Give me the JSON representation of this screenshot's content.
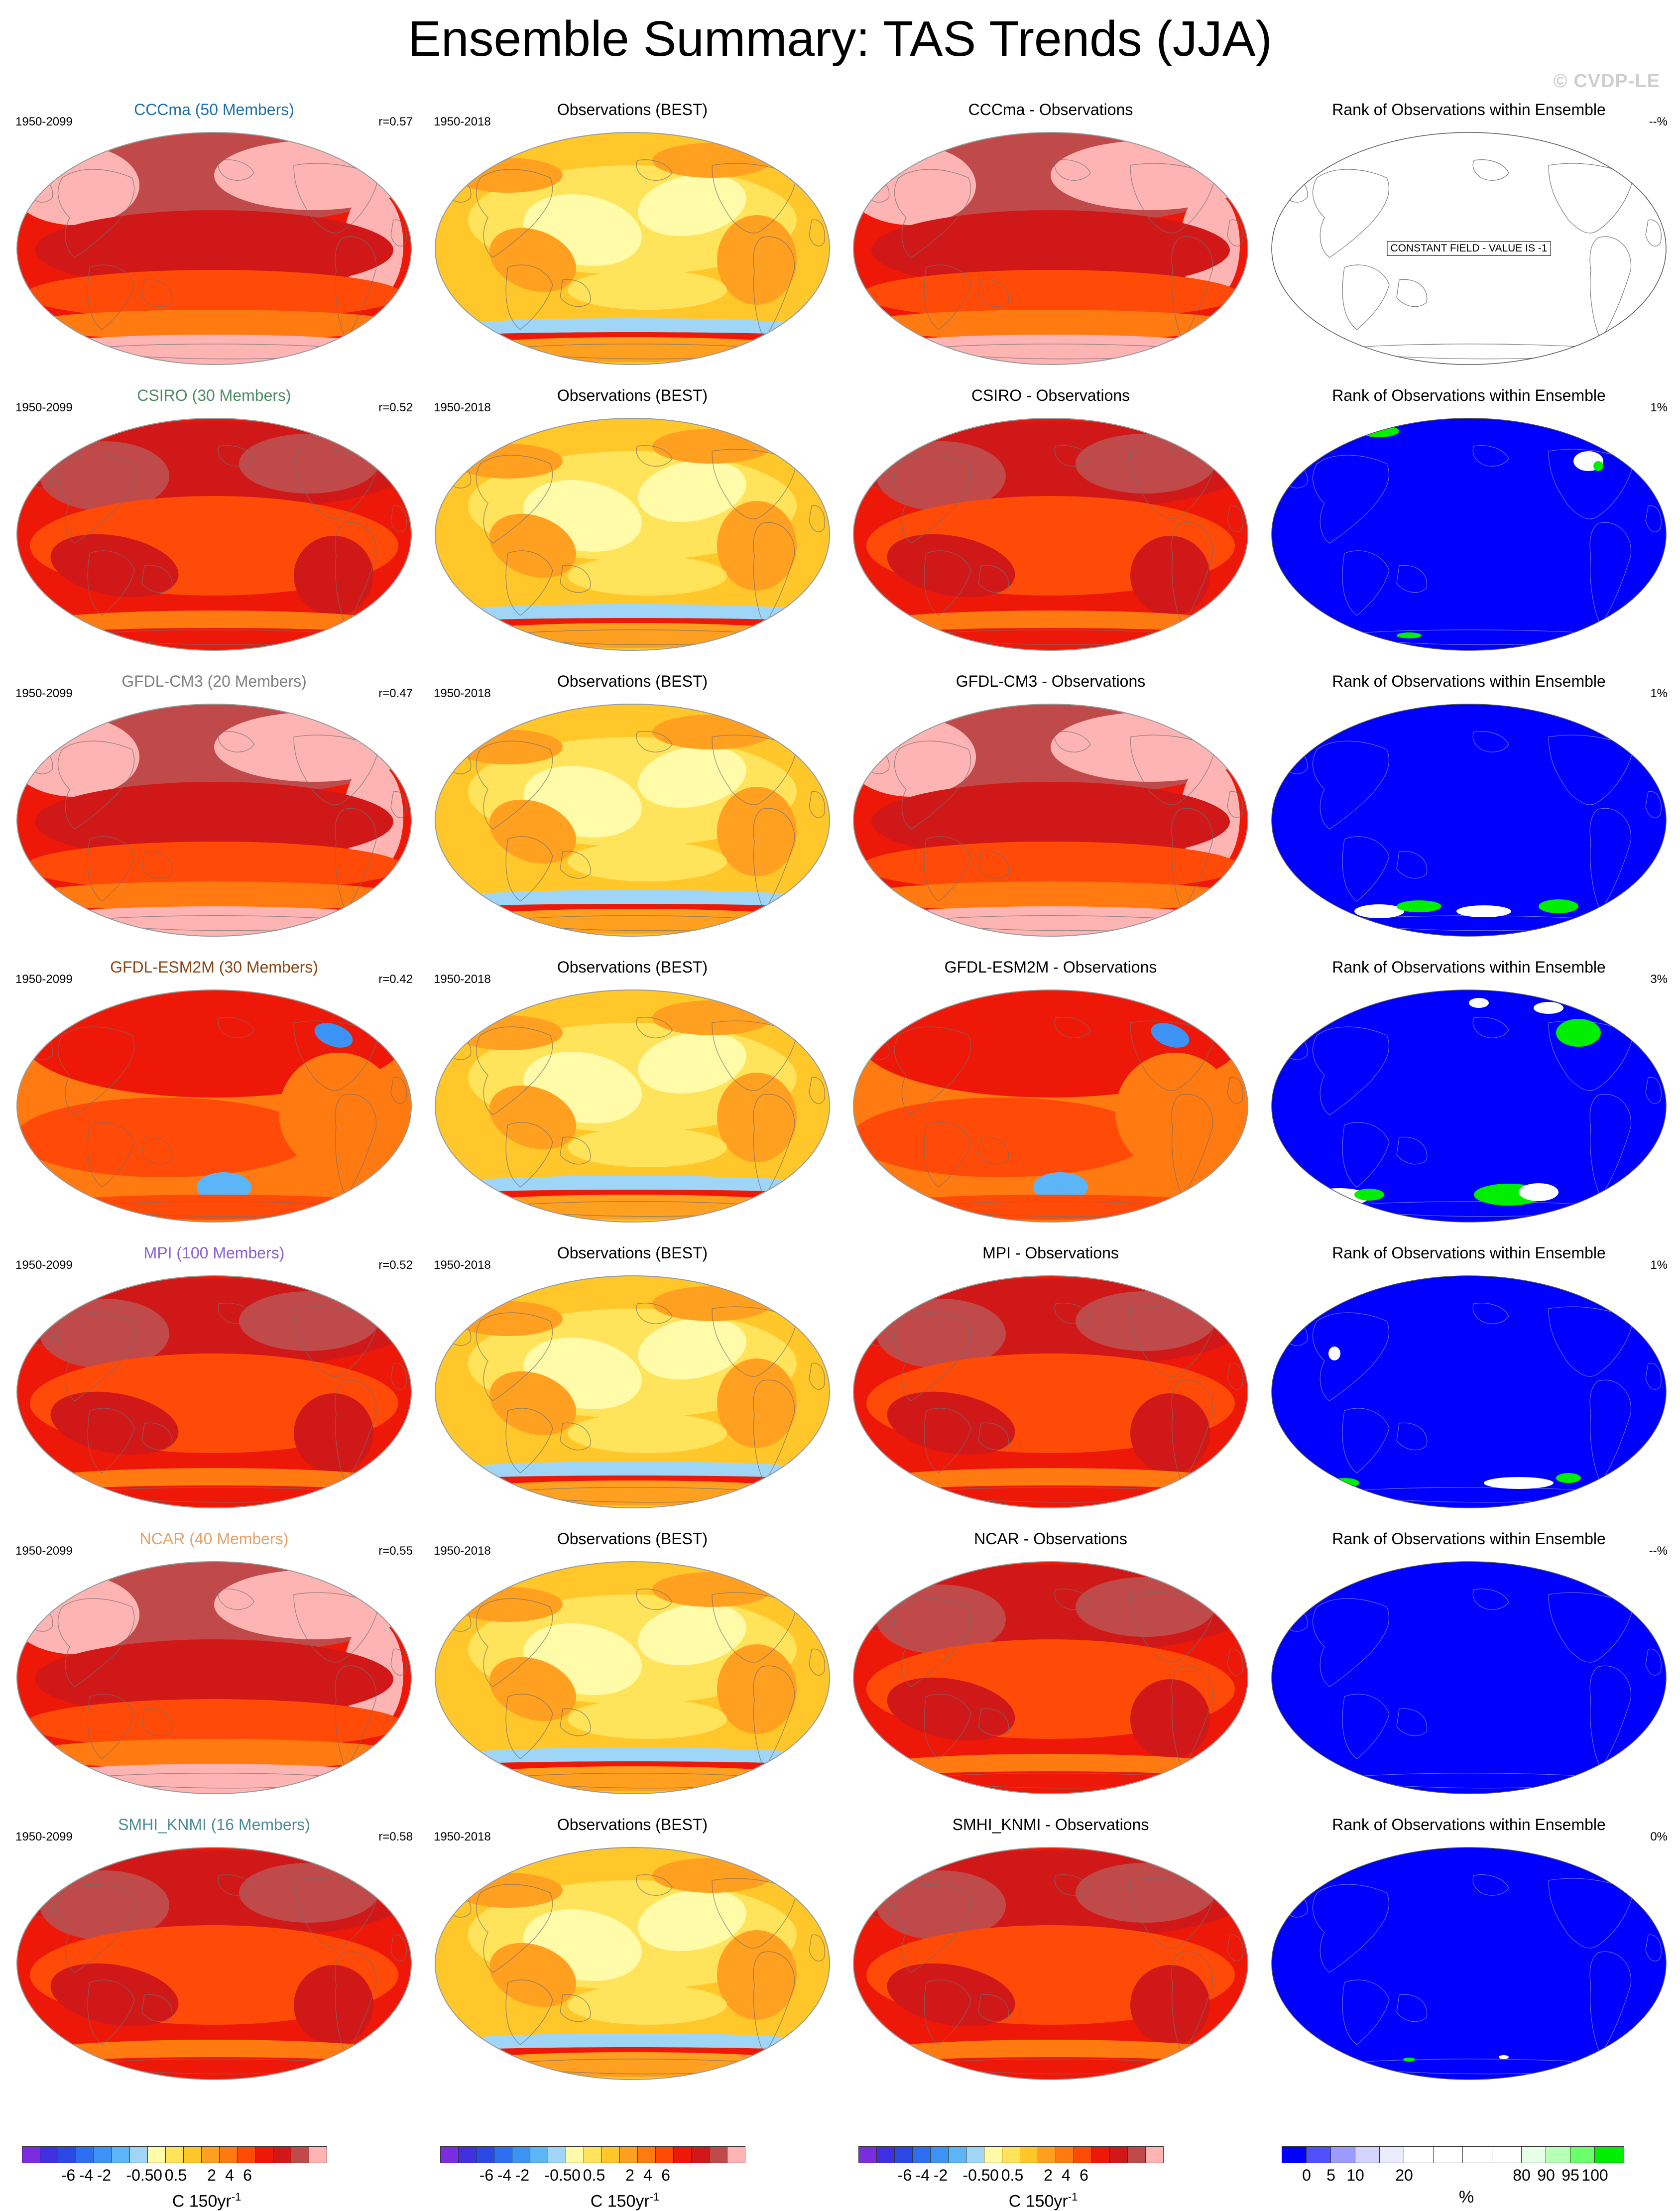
{
  "title": "Ensemble Summary: TAS Trends (JJA)",
  "credit": "© CVDP-LE",
  "colors": {
    "ocean_outline": "#9a9a9a",
    "coast": "#6f6f6f",
    "rank_blue": "#0000ff",
    "trend_ramp": [
      "#7b2be0",
      "#3f2fe0",
      "#2b48e6",
      "#2e6ef0",
      "#3c93f5",
      "#5bb5f7",
      "#9fd6f7",
      "#fffba8",
      "#ffe35a",
      "#ffc72a",
      "#ffa020",
      "#ff7a10",
      "#ff4a08",
      "#ee1808",
      "#d01818",
      "#c04a4a",
      "#ffb4b4"
    ],
    "rank_ramp": [
      "#0000ff",
      "#5050ff",
      "#9a9aff",
      "#d4d4ff",
      "#ebebff",
      "#ffffff",
      "#ffffff",
      "#ffffff",
      "#ffffff",
      "#e6ffe6",
      "#b8ffb8",
      "#6cff6c",
      "#00ee00"
    ]
  },
  "rows": [
    {
      "model_title": "CCCma (50 Members)",
      "model_color": "#1f6fa8",
      "model_period": "1950-2099",
      "r_label": "r=0.57",
      "obs_title": "Observations (BEST)",
      "obs_period": "1950-2018",
      "diff_title": "CCCma - Observations",
      "rank_title": "Rank of Observations within Ensemble",
      "rank_pct": "--%",
      "constant_label": "CONSTANT FIELD - VALUE IS -1",
      "model_style": "pink",
      "diff_style": "pink",
      "rank_style": "blank"
    },
    {
      "model_title": "CSIRO (30 Members)",
      "model_color": "#4e8a64",
      "model_period": "1950-2099",
      "r_label": "r=0.52",
      "obs_title": "Observations (BEST)",
      "obs_period": "1950-2018",
      "diff_title": "CSIRO - Observations",
      "rank_title": "Rank of Observations within Ensemble",
      "rank_pct": "1%",
      "model_style": "red",
      "diff_style": "red",
      "rank_style": "blue"
    },
    {
      "model_title": "GFDL-CM3 (20 Members)",
      "model_color": "#808080",
      "model_period": "1950-2099",
      "r_label": "r=0.47",
      "obs_title": "Observations (BEST)",
      "obs_period": "1950-2018",
      "diff_title": "GFDL-CM3 - Observations",
      "rank_title": "Rank of Observations within Ensemble",
      "rank_pct": "1%",
      "model_style": "pink",
      "diff_style": "pink",
      "rank_style": "blue"
    },
    {
      "model_title": "GFDL-ESM2M (30 Members)",
      "model_color": "#8b4513",
      "model_period": "1950-2099",
      "r_label": "r=0.42",
      "obs_title": "Observations (BEST)",
      "obs_period": "1950-2018",
      "diff_title": "GFDL-ESM2M - Observations",
      "rank_title": "Rank of Observations within Ensemble",
      "rank_pct": "3%",
      "model_style": "orange",
      "diff_style": "orange",
      "rank_style": "blue"
    },
    {
      "model_title": "MPI (100 Members)",
      "model_color": "#8a5fd0",
      "model_period": "1950-2099",
      "r_label": "r=0.52",
      "obs_title": "Observations (BEST)",
      "obs_period": "1950-2018",
      "diff_title": "MPI - Observations",
      "rank_title": "Rank of Observations within Ensemble",
      "rank_pct": "1%",
      "model_style": "red",
      "diff_style": "red",
      "rank_style": "blue"
    },
    {
      "model_title": "NCAR (40 Members)",
      "model_color": "#e6a16a",
      "model_period": "1950-2099",
      "r_label": "r=0.55",
      "obs_title": "Observations (BEST)",
      "obs_period": "1950-2018",
      "diff_title": "NCAR - Observations",
      "rank_title": "Rank of Observations within Ensemble",
      "rank_pct": "--%",
      "model_style": "pink",
      "diff_style": "red",
      "rank_style": "blue"
    },
    {
      "model_title": "SMHI_KNMI (16 Members)",
      "model_color": "#4c8b96",
      "model_period": "1950-2099",
      "r_label": "r=0.58",
      "obs_title": "Observations (BEST)",
      "obs_period": "1950-2018",
      "diff_title": "SMHI_KNMI - Observations",
      "rank_title": "Rank of Observations within Ensemble",
      "rank_pct": "0%",
      "model_style": "red",
      "diff_style": "red",
      "rank_style": "blue"
    }
  ],
  "legends": {
    "trend_ticks": [
      "-6",
      "-4",
      "-2",
      "-0.5",
      "0",
      "0.5",
      "2",
      "4",
      "6"
    ],
    "trend_unit": "C 150yr",
    "trend_unit_sup": "-1",
    "rank_ticks": [
      "0",
      "5",
      "10",
      "20",
      "80",
      "90",
      "95",
      "100"
    ],
    "rank_unit": "%"
  }
}
